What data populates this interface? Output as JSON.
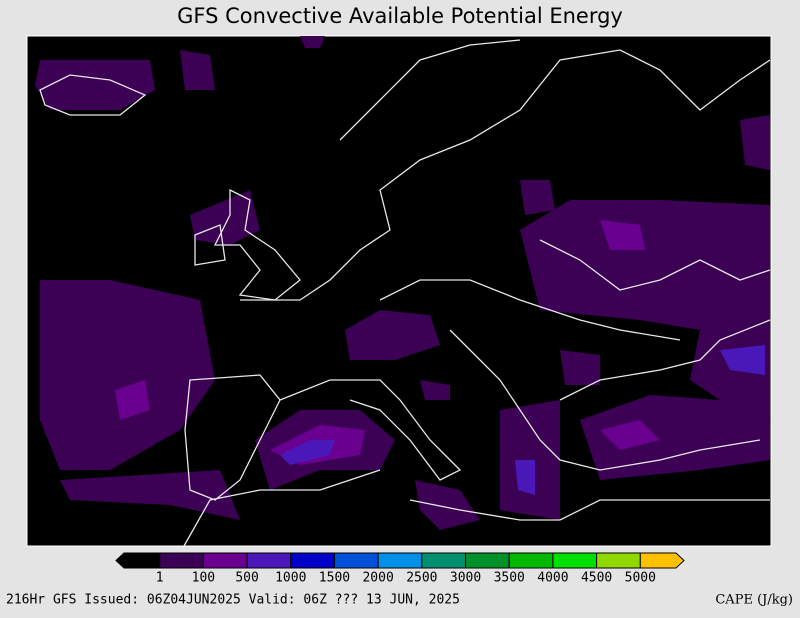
{
  "title": "GFS Convective Available Potential Energy",
  "colorbar": {
    "colors": [
      "#000000",
      "#3c0055",
      "#6a0090",
      "#4a18b8",
      "#0000c8",
      "#0050d8",
      "#0090e8",
      "#009070",
      "#00902a",
      "#00b800",
      "#00e000",
      "#90d800",
      "#ffc000"
    ],
    "labels": [
      1,
      100,
      500,
      1000,
      1500,
      2000,
      2500,
      3000,
      3500,
      4000,
      4500,
      5000
    ]
  },
  "footer": {
    "left": "216Hr GFS Issued: 06Z04JUN2025 Valid: 06Z ??? 13 JUN, 2025",
    "right": "CAPE (J/kg)"
  }
}
